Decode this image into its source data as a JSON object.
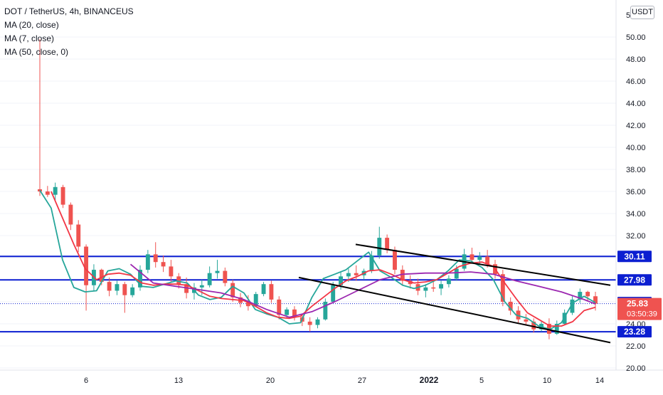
{
  "legend": {
    "symbol": "DOT / TetherUS, 4h, BINANCEUS",
    "ma20": "MA (20, close)",
    "ma7": "MA (7, close)",
    "ma50": "MA (50, close, 0)"
  },
  "currency_button": "USDT",
  "colors": {
    "up": "#26a69a",
    "down": "#ef5350",
    "ma7": "#26a69a",
    "ma20": "#f23645",
    "ma50": "#9c27b0",
    "level": "#0c1fd1",
    "trendline": "#000000",
    "current_price": "#ef5350"
  },
  "chart_data": {
    "type": "candlestick",
    "y_ticks": [
      "20.00",
      "22.00",
      "24.00",
      "26.00",
      "28.00",
      "30.00",
      "32.00",
      "34.00",
      "36.00",
      "38.00",
      "40.00",
      "42.00",
      "44.00",
      "46.00",
      "48.00",
      "50.00"
    ],
    "y_tick_partial": "5",
    "ylim": [
      19.5,
      52.5
    ],
    "x_ticks": [
      "6",
      "13",
      "20",
      "27",
      "2022",
      "5",
      "10",
      "14"
    ],
    "horizontal_levels": [
      {
        "label": "30.11",
        "value": 30.11
      },
      {
        "label": "27.98",
        "value": 27.98
      },
      {
        "label": "23.28",
        "value": 23.28
      }
    ],
    "marked_values": [
      {
        "label": "25.93",
        "value": 25.93
      }
    ],
    "current_price": {
      "label": "25.83",
      "value": 25.83,
      "countdown": "03:50:39"
    },
    "trendlines": [
      {
        "name": "upper",
        "from": {
          "x": "Dec 26",
          "y": 31.2
        },
        "to": {
          "x": "Jan 14",
          "y": 27.5
        }
      },
      {
        "name": "lower",
        "from": {
          "x": "Dec 22",
          "y": 28.2
        },
        "to": {
          "x": "Jan 14",
          "y": 22.3
        }
      }
    ],
    "moving_averages": [
      {
        "name": "MA (7, close)",
        "anchors": [
          [
            0,
            36.1
          ],
          [
            1,
            34.5
          ],
          [
            2,
            29.8
          ],
          [
            3,
            27.3
          ],
          [
            4,
            26.9
          ],
          [
            5,
            27.0
          ],
          [
            6,
            28.8
          ],
          [
            7,
            29.0
          ],
          [
            8,
            28.5
          ],
          [
            9,
            27.4
          ],
          [
            10,
            27.3
          ],
          [
            11,
            27.6
          ],
          [
            12,
            27.9
          ],
          [
            13,
            27.7
          ],
          [
            14,
            26.6
          ],
          [
            15,
            26.2
          ],
          [
            16,
            26.4
          ],
          [
            17,
            27.4
          ],
          [
            18,
            26.8
          ],
          [
            19,
            25.3
          ],
          [
            20,
            24.9
          ],
          [
            21,
            24.6
          ],
          [
            22,
            24.0
          ],
          [
            23,
            24.1
          ],
          [
            24,
            26.4
          ],
          [
            25,
            28.1
          ],
          [
            26,
            28.5
          ],
          [
            27,
            28.9
          ],
          [
            28,
            29.7
          ],
          [
            29,
            30.5
          ],
          [
            30,
            28.8
          ],
          [
            31,
            28.2
          ],
          [
            32,
            27.5
          ],
          [
            33,
            27.2
          ],
          [
            34,
            27.5
          ],
          [
            35,
            28.0
          ],
          [
            36,
            28.8
          ],
          [
            37,
            29.8
          ],
          [
            38,
            29.7
          ],
          [
            39,
            29.1
          ],
          [
            40,
            28.0
          ],
          [
            41,
            26.0
          ],
          [
            42,
            24.8
          ],
          [
            43,
            24.5
          ],
          [
            44,
            23.8
          ],
          [
            45,
            23.5
          ],
          [
            46,
            24.1
          ],
          [
            47,
            25.9
          ],
          [
            48,
            26.5
          ],
          [
            49,
            25.93
          ]
        ]
      },
      {
        "name": "MA (20, close)",
        "anchors": [
          [
            1,
            36.0
          ],
          [
            3,
            31.2
          ],
          [
            4,
            29.0
          ],
          [
            5,
            28.0
          ],
          [
            6,
            28.5
          ],
          [
            7,
            28.6
          ],
          [
            8,
            28.4
          ],
          [
            9,
            27.7
          ],
          [
            10,
            27.5
          ],
          [
            11,
            27.6
          ],
          [
            12,
            27.6
          ],
          [
            13,
            27.5
          ],
          [
            14,
            27.0
          ],
          [
            15,
            26.5
          ],
          [
            16,
            26.3
          ],
          [
            17,
            26.2
          ],
          [
            18,
            26.1
          ],
          [
            19,
            25.6
          ],
          [
            20,
            25.0
          ],
          [
            21,
            24.6
          ],
          [
            22,
            24.5
          ],
          [
            23,
            24.7
          ],
          [
            24,
            25.6
          ],
          [
            25,
            26.4
          ],
          [
            26,
            27.2
          ],
          [
            27,
            27.9
          ],
          [
            28,
            28.3
          ],
          [
            29,
            28.8
          ],
          [
            30,
            28.9
          ],
          [
            31,
            28.5
          ],
          [
            32,
            28.0
          ],
          [
            33,
            27.7
          ],
          [
            34,
            27.8
          ],
          [
            35,
            28.0
          ],
          [
            36,
            28.6
          ],
          [
            37,
            29.2
          ],
          [
            38,
            29.5
          ],
          [
            39,
            29.6
          ],
          [
            40,
            29.2
          ],
          [
            41,
            27.7
          ],
          [
            42,
            26.3
          ],
          [
            43,
            25.0
          ],
          [
            44,
            24.4
          ],
          [
            45,
            23.8
          ],
          [
            46,
            23.8
          ],
          [
            47,
            24.2
          ],
          [
            48,
            25.2
          ],
          [
            49,
            25.5
          ]
        ]
      },
      {
        "name": "MA (50, close, 0)",
        "anchors": [
          [
            8,
            29.4
          ],
          [
            10,
            27.7
          ],
          [
            12,
            27.4
          ],
          [
            14,
            27.1
          ],
          [
            16,
            26.8
          ],
          [
            18,
            26.2
          ],
          [
            20,
            25.3
          ],
          [
            22,
            24.6
          ],
          [
            24,
            25.1
          ],
          [
            26,
            26.0
          ],
          [
            28,
            27.0
          ],
          [
            30,
            28.0
          ],
          [
            32,
            28.5
          ],
          [
            34,
            28.6
          ],
          [
            36,
            28.6
          ],
          [
            38,
            28.7
          ],
          [
            40,
            28.5
          ],
          [
            42,
            27.9
          ],
          [
            44,
            27.4
          ],
          [
            46,
            26.9
          ],
          [
            48,
            26.2
          ],
          [
            49,
            25.8
          ]
        ]
      }
    ],
    "candles": [
      {
        "o": 36.2,
        "h": 49.8,
        "l": 35.6,
        "c": 36.0
      },
      {
        "o": 36.0,
        "h": 36.5,
        "l": 35.5,
        "c": 35.7
      },
      {
        "o": 35.7,
        "h": 36.8,
        "l": 35.2,
        "c": 36.4
      },
      {
        "o": 36.4,
        "h": 36.6,
        "l": 34.5,
        "c": 34.8
      },
      {
        "o": 34.8,
        "h": 35.0,
        "l": 32.5,
        "c": 33.0
      },
      {
        "o": 33.0,
        "h": 33.4,
        "l": 30.5,
        "c": 31.0
      },
      {
        "o": 31.0,
        "h": 31.2,
        "l": 25.2,
        "c": 27.5
      },
      {
        "o": 27.5,
        "h": 29.4,
        "l": 27.0,
        "c": 28.9
      },
      {
        "o": 28.9,
        "h": 29.0,
        "l": 27.5,
        "c": 27.8
      },
      {
        "o": 27.8,
        "h": 28.2,
        "l": 26.5,
        "c": 27.0
      },
      {
        "o": 27.0,
        "h": 27.9,
        "l": 26.6,
        "c": 27.6
      },
      {
        "o": 27.6,
        "h": 27.8,
        "l": 25.0,
        "c": 26.6
      },
      {
        "o": 26.6,
        "h": 27.6,
        "l": 26.4,
        "c": 27.3
      },
      {
        "o": 27.3,
        "h": 29.3,
        "l": 27.0,
        "c": 28.9
      },
      {
        "o": 28.9,
        "h": 30.7,
        "l": 28.6,
        "c": 30.3
      },
      {
        "o": 30.3,
        "h": 31.4,
        "l": 29.1,
        "c": 29.6
      },
      {
        "o": 29.6,
        "h": 30.2,
        "l": 28.7,
        "c": 29.2
      },
      {
        "o": 29.2,
        "h": 29.8,
        "l": 27.8,
        "c": 28.3
      },
      {
        "o": 28.3,
        "h": 28.6,
        "l": 27.2,
        "c": 27.6
      },
      {
        "o": 27.6,
        "h": 28.2,
        "l": 26.3,
        "c": 26.8
      },
      {
        "o": 26.8,
        "h": 27.7,
        "l": 26.2,
        "c": 27.3
      },
      {
        "o": 27.3,
        "h": 28.0,
        "l": 26.6,
        "c": 27.5
      },
      {
        "o": 27.5,
        "h": 29.2,
        "l": 27.3,
        "c": 28.6
      },
      {
        "o": 28.6,
        "h": 29.8,
        "l": 28.1,
        "c": 28.8
      },
      {
        "o": 28.8,
        "h": 29.1,
        "l": 27.4,
        "c": 27.7
      },
      {
        "o": 27.7,
        "h": 28.0,
        "l": 26.0,
        "c": 26.4
      },
      {
        "o": 26.4,
        "h": 26.8,
        "l": 25.5,
        "c": 25.9
      },
      {
        "o": 25.9,
        "h": 26.6,
        "l": 25.2,
        "c": 25.6
      },
      {
        "o": 25.6,
        "h": 26.9,
        "l": 25.5,
        "c": 26.7
      },
      {
        "o": 26.7,
        "h": 27.8,
        "l": 26.5,
        "c": 27.6
      },
      {
        "o": 27.6,
        "h": 27.9,
        "l": 25.9,
        "c": 26.2
      },
      {
        "o": 26.2,
        "h": 26.5,
        "l": 24.4,
        "c": 24.8
      },
      {
        "o": 24.8,
        "h": 25.5,
        "l": 24.5,
        "c": 25.3
      },
      {
        "o": 25.3,
        "h": 25.6,
        "l": 24.3,
        "c": 24.6
      },
      {
        "o": 24.6,
        "h": 24.9,
        "l": 23.8,
        "c": 24.2
      },
      {
        "o": 24.2,
        "h": 24.6,
        "l": 23.3,
        "c": 23.9
      },
      {
        "o": 23.9,
        "h": 24.6,
        "l": 23.6,
        "c": 24.4
      },
      {
        "o": 24.4,
        "h": 26.3,
        "l": 24.3,
        "c": 26.0
      },
      {
        "o": 26.0,
        "h": 27.8,
        "l": 25.9,
        "c": 27.5
      },
      {
        "o": 27.5,
        "h": 28.7,
        "l": 27.1,
        "c": 28.3
      },
      {
        "o": 28.3,
        "h": 29.0,
        "l": 27.8,
        "c": 28.6
      },
      {
        "o": 28.6,
        "h": 29.3,
        "l": 27.9,
        "c": 28.4
      },
      {
        "o": 28.4,
        "h": 29.0,
        "l": 28.0,
        "c": 28.8
      },
      {
        "o": 28.8,
        "h": 30.6,
        "l": 28.6,
        "c": 30.2
      },
      {
        "o": 30.2,
        "h": 32.8,
        "l": 29.9,
        "c": 31.8
      },
      {
        "o": 31.8,
        "h": 32.1,
        "l": 30.4,
        "c": 30.7
      },
      {
        "o": 30.7,
        "h": 31.0,
        "l": 28.5,
        "c": 28.9
      },
      {
        "o": 28.9,
        "h": 29.3,
        "l": 27.5,
        "c": 27.9
      },
      {
        "o": 27.9,
        "h": 28.4,
        "l": 27.2,
        "c": 27.6
      },
      {
        "o": 27.6,
        "h": 28.1,
        "l": 26.6,
        "c": 27.0
      },
      {
        "o": 27.0,
        "h": 27.6,
        "l": 26.4,
        "c": 27.3
      },
      {
        "o": 27.3,
        "h": 28.0,
        "l": 26.9,
        "c": 27.2
      },
      {
        "o": 27.2,
        "h": 27.9,
        "l": 26.6,
        "c": 27.6
      },
      {
        "o": 27.6,
        "h": 28.4,
        "l": 27.3,
        "c": 28.1
      },
      {
        "o": 28.1,
        "h": 29.3,
        "l": 27.9,
        "c": 29.0
      },
      {
        "o": 29.0,
        "h": 30.8,
        "l": 28.8,
        "c": 30.3
      },
      {
        "o": 30.3,
        "h": 30.9,
        "l": 29.5,
        "c": 29.8
      },
      {
        "o": 29.8,
        "h": 30.5,
        "l": 29.4,
        "c": 30.1
      },
      {
        "o": 30.1,
        "h": 30.7,
        "l": 29.1,
        "c": 29.4
      },
      {
        "o": 29.4,
        "h": 29.8,
        "l": 28.1,
        "c": 28.5
      },
      {
        "o": 28.5,
        "h": 28.9,
        "l": 25.6,
        "c": 26.0
      },
      {
        "o": 26.0,
        "h": 26.4,
        "l": 24.8,
        "c": 25.2
      },
      {
        "o": 25.2,
        "h": 25.6,
        "l": 24.1,
        "c": 24.4
      },
      {
        "o": 24.4,
        "h": 24.9,
        "l": 23.9,
        "c": 24.2
      },
      {
        "o": 24.2,
        "h": 24.5,
        "l": 23.2,
        "c": 23.5
      },
      {
        "o": 23.5,
        "h": 24.3,
        "l": 23.3,
        "c": 24.0
      },
      {
        "o": 24.0,
        "h": 24.5,
        "l": 22.6,
        "c": 23.1
      },
      {
        "o": 23.1,
        "h": 24.3,
        "l": 23.0,
        "c": 24.0
      },
      {
        "o": 24.0,
        "h": 25.3,
        "l": 23.9,
        "c": 25.0
      },
      {
        "o": 25.0,
        "h": 26.5,
        "l": 24.8,
        "c": 26.2
      },
      {
        "o": 26.2,
        "h": 27.2,
        "l": 25.9,
        "c": 26.9
      },
      {
        "o": 26.9,
        "h": 27.0,
        "l": 26.1,
        "c": 26.5
      },
      {
        "o": 26.5,
        "h": 26.9,
        "l": 25.2,
        "c": 25.83
      }
    ]
  }
}
